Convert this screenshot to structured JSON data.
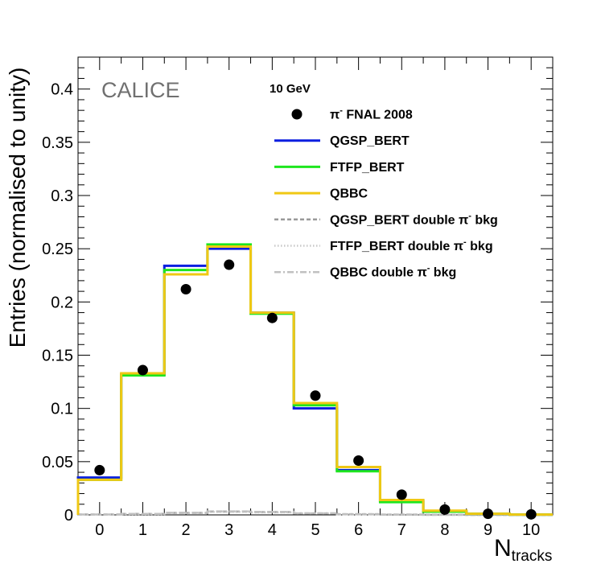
{
  "chart_data": {
    "type": "histogram",
    "title": "",
    "energy_label": "10 GeV",
    "watermark": "CALICE",
    "xlabel": "N",
    "xlabel_subscript": "tracks",
    "ylabel": "Entries (normalised to unity)",
    "xlim": [
      -0.5,
      10.5
    ],
    "ylim": [
      0,
      0.43
    ],
    "x_ticks": [
      0,
      1,
      2,
      3,
      4,
      5,
      6,
      7,
      8,
      9,
      10
    ],
    "x_tick_labels": [
      "0",
      "1",
      "2",
      "3",
      "4",
      "5",
      "6",
      "7",
      "8",
      "9",
      "10"
    ],
    "y_ticks": [
      0,
      0.05,
      0.1,
      0.15,
      0.2,
      0.25,
      0.3,
      0.35,
      0.4
    ],
    "y_tick_labels": [
      "0",
      "0.05",
      "0.1",
      "0.15",
      "0.2",
      "0.25",
      "0.3",
      "0.35",
      "0.4"
    ],
    "categories": [
      0,
      1,
      2,
      3,
      4,
      5,
      6,
      7,
      8,
      9,
      10
    ],
    "series": [
      {
        "name": "π⁻ FNAL 2008",
        "kind": "points",
        "color": "#000000",
        "values": [
          0.042,
          0.136,
          0.212,
          0.235,
          0.185,
          0.112,
          0.051,
          0.019,
          0.005,
          0.001,
          0.0005
        ]
      },
      {
        "name": "QGSP_BERT",
        "kind": "step",
        "color": "#0a1ee0",
        "values": [
          0.035,
          0.132,
          0.234,
          0.25,
          0.19,
          0.1,
          0.042,
          0.013,
          0.003,
          0.001,
          0.0003
        ]
      },
      {
        "name": "FTFP_BERT",
        "kind": "step",
        "color": "#1ee61e",
        "values": [
          0.033,
          0.131,
          0.23,
          0.254,
          0.189,
          0.103,
          0.041,
          0.012,
          0.003,
          0.001,
          0.0003
        ]
      },
      {
        "name": "QBBC",
        "kind": "step",
        "color": "#f0c814",
        "values": [
          0.033,
          0.133,
          0.226,
          0.252,
          0.19,
          0.105,
          0.045,
          0.014,
          0.004,
          0.001,
          0.0003
        ]
      },
      {
        "name": "QGSP_BERT double π⁻ bkg",
        "kind": "dashed",
        "color": "#9a9a9a",
        "values": [
          0.0004,
          0.0009,
          0.0019,
          0.0031,
          0.0026,
          0.0014,
          0.0007,
          0.0003,
          0.0001,
          0.0,
          0.0
        ]
      },
      {
        "name": "FTFP_BERT double π⁻ bkg",
        "kind": "dotted",
        "color": "#c8c8c8",
        "values": [
          0.0003,
          0.0008,
          0.0017,
          0.0028,
          0.0024,
          0.0013,
          0.0006,
          0.0003,
          0.0001,
          0.0,
          0.0
        ]
      },
      {
        "name": "QBBC double π⁻ bkg",
        "kind": "dashdot",
        "color": "#c0c0c0",
        "values": [
          0.0004,
          0.0009,
          0.002,
          0.0033,
          0.0028,
          0.0015,
          0.0007,
          0.0003,
          0.0001,
          0.0,
          0.0
        ]
      }
    ],
    "legend": {
      "position": "top-right",
      "entries": [
        {
          "label_main": "π",
          "label_sup": "-",
          "label_rest": " FNAL 2008",
          "marker": "dot"
        },
        {
          "label_main": "QGSP_BERT",
          "label_sup": "",
          "label_rest": "",
          "marker": "line"
        },
        {
          "label_main": "FTFP_BERT",
          "label_sup": "",
          "label_rest": "",
          "marker": "line"
        },
        {
          "label_main": "QBBC",
          "label_sup": "",
          "label_rest": "",
          "marker": "line"
        },
        {
          "label_main": "QGSP_BERT double π",
          "label_sup": "-",
          "label_rest": " bkg",
          "marker": "dashed"
        },
        {
          "label_main": "FTFP_BERT double π",
          "label_sup": "-",
          "label_rest": " bkg",
          "marker": "dotted"
        },
        {
          "label_main": "QBBC double π",
          "label_sup": "-",
          "label_rest": " bkg",
          "marker": "dashdot"
        }
      ]
    }
  }
}
